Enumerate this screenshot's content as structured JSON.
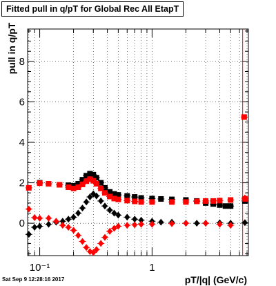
{
  "title": "Fitted pull in q/pT for Global Rec All EtapT",
  "footer": "Sat Sep  9 12:28:16 2017",
  "chart_data": {
    "type": "scatter",
    "title": "Fitted pull in q/pT for Global Rec All EtapT",
    "xlabel": "pT/|q| (GeV/c)",
    "ylabel": "pull in q/pT",
    "xscale": "log",
    "xlim": [
      0.078,
      7.2
    ],
    "ylim": [
      -1.6,
      9.6
    ],
    "x_tick_labels": [
      "10⁻¹",
      "1"
    ],
    "y_tick_labels": [
      "0",
      "2",
      "4",
      "6",
      "8"
    ],
    "grid": true,
    "vertical_line_x": 6.4,
    "colors": {
      "black": "#000000",
      "red": "#ff0000"
    },
    "series": [
      {
        "marker": "square",
        "color": "#000000",
        "points": [
          [
            0.1,
            2.0
          ],
          [
            0.12,
            1.95
          ],
          [
            0.15,
            1.9
          ],
          [
            0.18,
            1.88
          ],
          [
            0.2,
            1.85
          ],
          [
            0.22,
            1.95
          ],
          [
            0.24,
            2.15
          ],
          [
            0.26,
            2.35
          ],
          [
            0.28,
            2.45
          ],
          [
            0.3,
            2.4
          ],
          [
            0.32,
            2.25
          ],
          [
            0.35,
            2.0
          ],
          [
            0.38,
            1.75
          ],
          [
            0.42,
            1.55
          ],
          [
            0.46,
            1.45
          ],
          [
            0.5,
            1.4
          ],
          [
            0.6,
            1.35
          ],
          [
            0.7,
            1.3
          ],
          [
            0.8,
            1.25
          ],
          [
            1.0,
            1.22
          ],
          [
            1.2,
            1.2
          ],
          [
            1.5,
            1.18
          ],
          [
            2.0,
            1.15
          ],
          [
            2.5,
            1.1
          ],
          [
            3.0,
            1.0
          ],
          [
            3.5,
            0.95
          ],
          [
            4.0,
            0.9
          ],
          [
            4.5,
            0.85
          ],
          [
            5.0,
            0.85
          ],
          [
            6.7,
            1.1
          ]
        ]
      },
      {
        "marker": "square",
        "color": "#ff0000",
        "points": [
          [
            0.08,
            1.75
          ],
          [
            0.1,
            1.98
          ],
          [
            0.12,
            1.95
          ],
          [
            0.15,
            1.9
          ],
          [
            0.18,
            1.78
          ],
          [
            0.2,
            1.72
          ],
          [
            0.22,
            1.78
          ],
          [
            0.24,
            1.92
          ],
          [
            0.26,
            2.08
          ],
          [
            0.28,
            2.18
          ],
          [
            0.3,
            2.1
          ],
          [
            0.32,
            1.95
          ],
          [
            0.35,
            1.72
          ],
          [
            0.38,
            1.5
          ],
          [
            0.42,
            1.32
          ],
          [
            0.46,
            1.22
          ],
          [
            0.5,
            1.18
          ],
          [
            0.6,
            1.12
          ],
          [
            0.7,
            1.08
          ],
          [
            0.8,
            1.05
          ],
          [
            1.0,
            1.05
          ],
          [
            1.5,
            1.05
          ],
          [
            2.0,
            1.05
          ],
          [
            2.5,
            1.08
          ],
          [
            3.0,
            1.1
          ],
          [
            3.5,
            1.1
          ],
          [
            4.0,
            1.12
          ],
          [
            5.0,
            1.15
          ],
          [
            6.7,
            1.2
          ],
          [
            6.6,
            5.25
          ]
        ]
      },
      {
        "marker": "diamond",
        "color": "#000000",
        "points": [
          [
            0.08,
            -0.55
          ],
          [
            0.09,
            -0.2
          ],
          [
            0.1,
            -0.15
          ],
          [
            0.12,
            -0.05
          ],
          [
            0.14,
            0.05
          ],
          [
            0.16,
            0.1
          ],
          [
            0.18,
            0.2
          ],
          [
            0.2,
            0.3
          ],
          [
            0.22,
            0.5
          ],
          [
            0.24,
            0.75
          ],
          [
            0.26,
            1.05
          ],
          [
            0.28,
            1.3
          ],
          [
            0.3,
            1.45
          ],
          [
            0.32,
            1.35
          ],
          [
            0.35,
            1.1
          ],
          [
            0.38,
            0.85
          ],
          [
            0.42,
            0.65
          ],
          [
            0.46,
            0.5
          ],
          [
            0.5,
            0.4
          ],
          [
            0.6,
            0.3
          ],
          [
            0.7,
            0.2
          ],
          [
            0.8,
            0.15
          ],
          [
            1.0,
            0.1
          ],
          [
            1.2,
            0.05
          ],
          [
            1.5,
            0.05
          ],
          [
            2.0,
            0.0
          ],
          [
            2.5,
            0.0
          ],
          [
            3.0,
            0.0
          ],
          [
            4.0,
            0.02
          ],
          [
            5.0,
            0.0
          ],
          [
            6.7,
            0.03
          ]
        ]
      },
      {
        "marker": "diamond",
        "color": "#ff0000",
        "points": [
          [
            0.08,
            0.7
          ],
          [
            0.09,
            0.28
          ],
          [
            0.1,
            0.25
          ],
          [
            0.12,
            0.25
          ],
          [
            0.14,
            0.1
          ],
          [
            0.16,
            -0.1
          ],
          [
            0.18,
            -0.2
          ],
          [
            0.2,
            -0.35
          ],
          [
            0.22,
            -0.6
          ],
          [
            0.24,
            -0.9
          ],
          [
            0.26,
            -1.2
          ],
          [
            0.28,
            -1.4
          ],
          [
            0.3,
            -1.45
          ],
          [
            0.32,
            -1.3
          ],
          [
            0.35,
            -1.0
          ],
          [
            0.38,
            -0.7
          ],
          [
            0.42,
            -0.4
          ],
          [
            0.46,
            -0.25
          ],
          [
            0.5,
            -0.15
          ],
          [
            0.6,
            -0.1
          ],
          [
            0.7,
            -0.08
          ],
          [
            0.8,
            -0.05
          ],
          [
            1.0,
            -0.05
          ],
          [
            1.5,
            -0.02
          ],
          [
            2.0,
            0.0
          ],
          [
            3.0,
            0.0
          ],
          [
            4.0,
            -0.05
          ],
          [
            5.0,
            -0.1
          ],
          [
            6.7,
            1.25
          ]
        ]
      }
    ]
  }
}
